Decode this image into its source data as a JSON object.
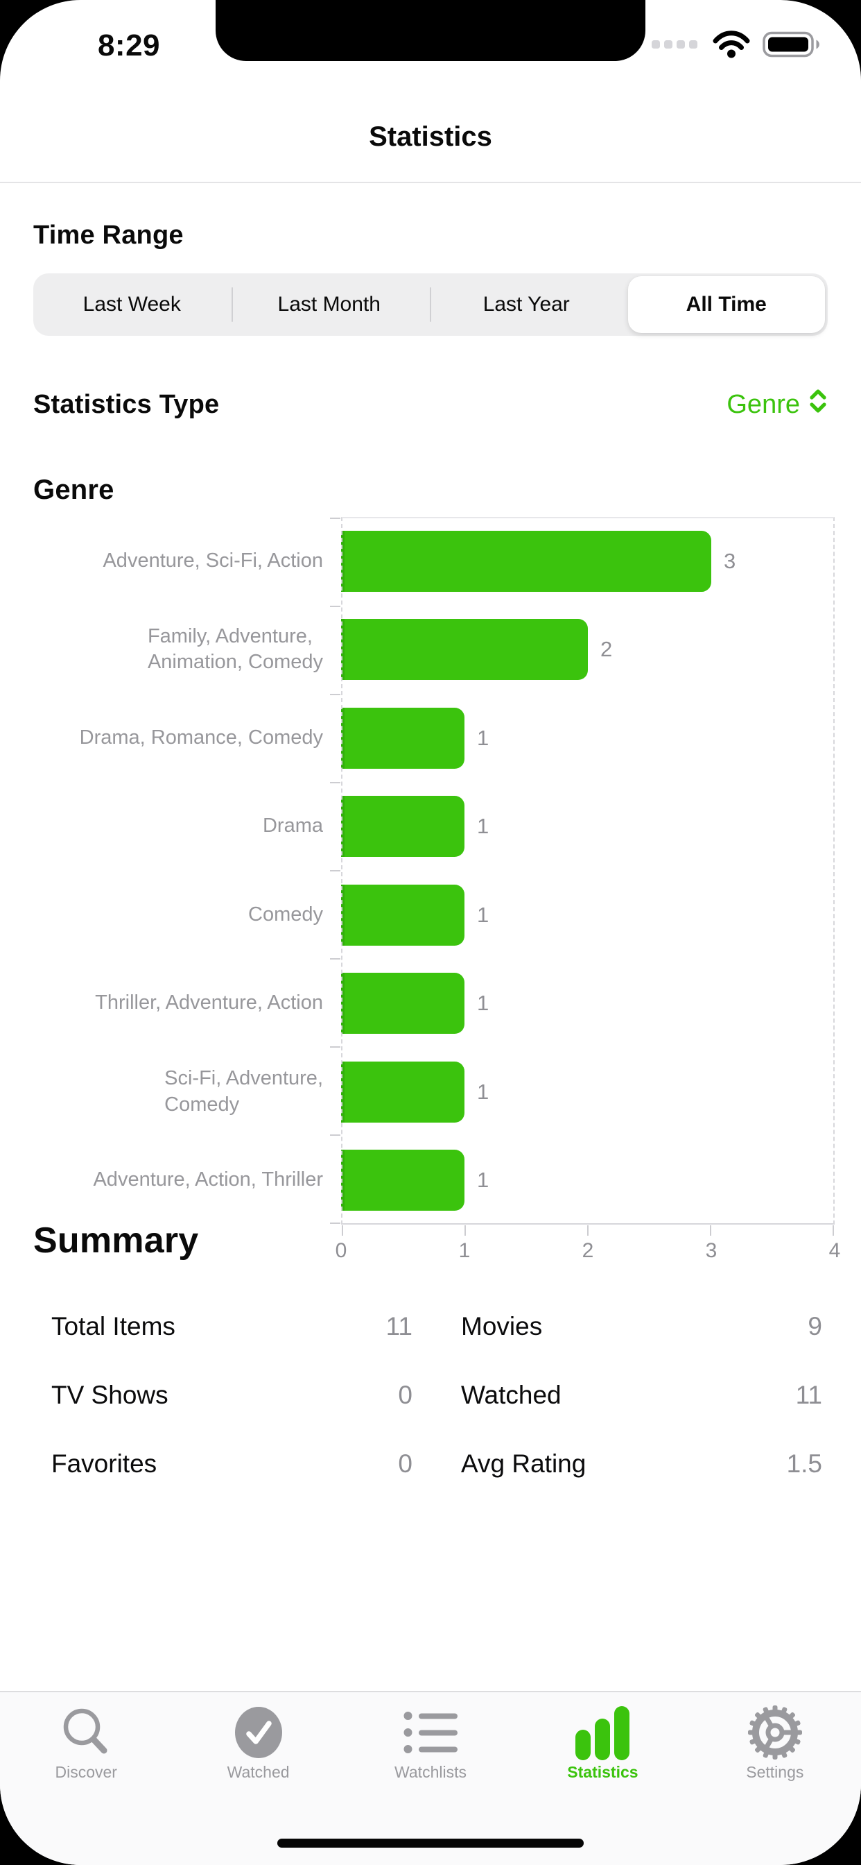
{
  "colors": {
    "accent_green": "#3BC30D",
    "gray_text": "#8E8E93"
  },
  "status_bar": {
    "time": "8:29",
    "icons": [
      "cellular-dots-icon",
      "wifi-icon",
      "battery-icon"
    ]
  },
  "header": {
    "title": "Statistics"
  },
  "time_range": {
    "heading": "Time Range",
    "options": [
      "Last Week",
      "Last Month",
      "Last Year",
      "All Time"
    ],
    "selected": "All Time"
  },
  "statistics_type": {
    "heading": "Statistics Type",
    "selected": "Genre"
  },
  "chart_section": {
    "heading": "Genre"
  },
  "chart_data": {
    "type": "bar",
    "orientation": "horizontal",
    "title": "Genre",
    "categories": [
      "Adventure, Sci-Fi, Action",
      "Family, Adventure,\nAnimation, Comedy",
      "Drama, Romance, Comedy",
      "Drama",
      "Comedy",
      "Thriller, Adventure, Action",
      "Sci-Fi, Adventure,\nComedy",
      "Adventure, Action, Thriller"
    ],
    "values": [
      3,
      2,
      1,
      1,
      1,
      1,
      1,
      1
    ],
    "xlim": [
      0,
      4
    ],
    "x_ticks": [
      "0",
      "1",
      "2",
      "3",
      "4"
    ],
    "bar_color": "#3BC30D",
    "grid": "dashed edge gridlines at x=0 and x=4, tick marks on category and value axes"
  },
  "summary": {
    "heading": "Summary",
    "items": [
      {
        "label": "Total Items",
        "value": "11"
      },
      {
        "label": "Movies",
        "value": "9"
      },
      {
        "label": "TV Shows",
        "value": "0"
      },
      {
        "label": "Watched",
        "value": "11"
      },
      {
        "label": "Favorites",
        "value": "0"
      },
      {
        "label": "Avg Rating",
        "value": "1.5"
      }
    ]
  },
  "tab_bar": {
    "items": [
      {
        "label": "Discover",
        "icon": "search-icon",
        "active": false
      },
      {
        "label": "Watched",
        "icon": "checkmark-circle-icon",
        "active": false
      },
      {
        "label": "Watchlists",
        "icon": "list-bullet-icon",
        "active": false
      },
      {
        "label": "Statistics",
        "icon": "bar-chart-icon",
        "active": true
      },
      {
        "label": "Settings",
        "icon": "gear-icon",
        "active": false
      }
    ]
  }
}
